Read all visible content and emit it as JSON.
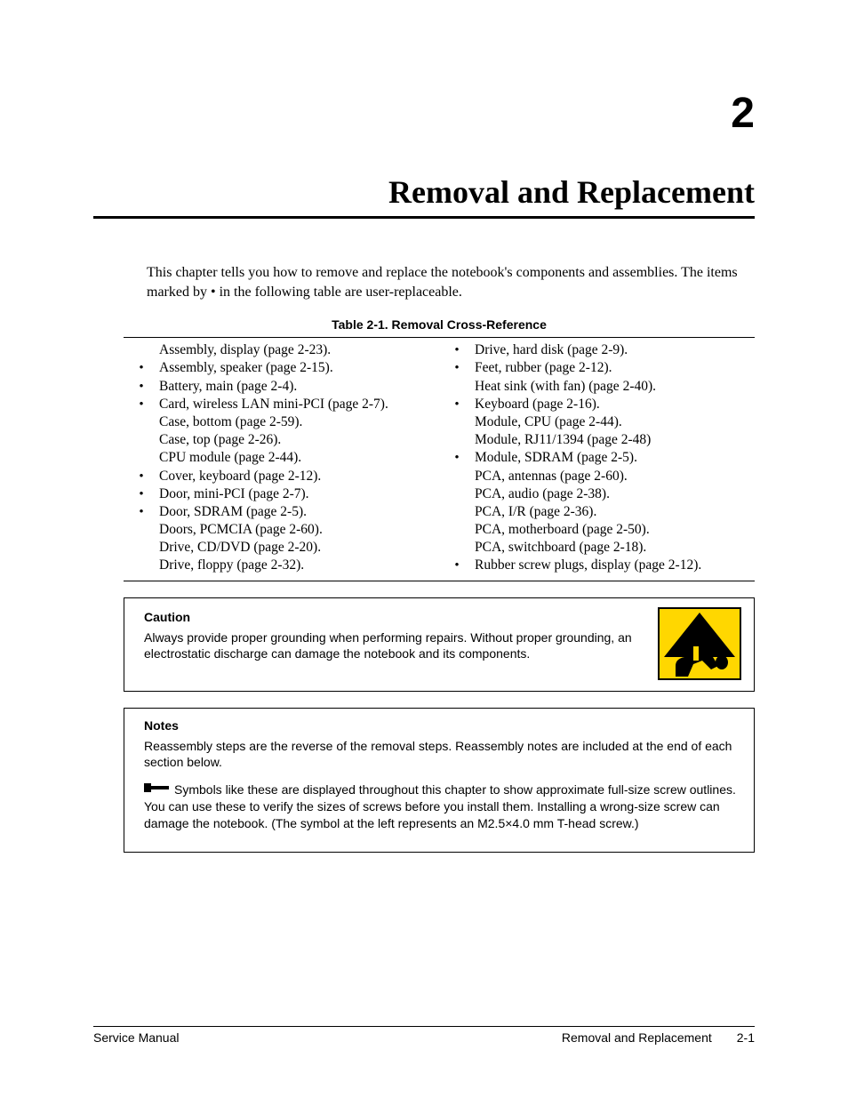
{
  "chapter": {
    "number": "2",
    "title": "Removal and Replacement"
  },
  "intro": "This chapter tells you how to remove and replace the notebook's components and assemblies. The items marked by • in the following table are user-replaceable.",
  "table": {
    "caption": "Table 2-1. Removal Cross-Reference",
    "left": [
      {
        "b": false,
        "t": "Assembly, display (page 2-23)."
      },
      {
        "b": true,
        "t": "Assembly, speaker (page 2-15)."
      },
      {
        "b": true,
        "t": "Battery, main (page 2-4)."
      },
      {
        "b": true,
        "t": "Card, wireless LAN mini-PCI (page 2-7)."
      },
      {
        "b": false,
        "t": "Case, bottom (page 2-59)."
      },
      {
        "b": false,
        "t": "Case, top (page 2-26)."
      },
      {
        "b": false,
        "t": "CPU module (page 2-44)."
      },
      {
        "b": true,
        "t": "Cover, keyboard (page 2-12)."
      },
      {
        "b": true,
        "t": "Door, mini-PCI (page 2-7)."
      },
      {
        "b": true,
        "t": "Door, SDRAM (page 2-5)."
      },
      {
        "b": false,
        "t": "Doors, PCMCIA (page 2-60)."
      },
      {
        "b": false,
        "t": "Drive, CD/DVD (page 2-20)."
      },
      {
        "b": false,
        "t": "Drive, floppy (page 2-32)."
      }
    ],
    "right": [
      {
        "b": true,
        "t": "Drive, hard disk (page 2-9)."
      },
      {
        "b": true,
        "t": "Feet, rubber (page 2-12)."
      },
      {
        "b": false,
        "t": "Heat sink (with fan) (page 2-40)."
      },
      {
        "b": true,
        "t": "Keyboard (page 2-16)."
      },
      {
        "b": false,
        "t": "Module, CPU (page 2-44)."
      },
      {
        "b": false,
        "t": "Module, RJ11/1394 (page 2-48)"
      },
      {
        "b": true,
        "t": "Module, SDRAM (page 2-5)."
      },
      {
        "b": false,
        "t": "PCA, antennas (page 2-60)."
      },
      {
        "b": false,
        "t": "PCA, audio (page 2-38)."
      },
      {
        "b": false,
        "t": "PCA, I/R (page 2-36)."
      },
      {
        "b": false,
        "t": "PCA, motherboard (page 2-50)."
      },
      {
        "b": false,
        "t": "PCA, switchboard (page 2-18)."
      },
      {
        "b": true,
        "t": "Rubber screw plugs, display (page 2-12)."
      }
    ]
  },
  "caution": {
    "heading": "Caution",
    "text": "Always provide proper grounding when performing repairs. Without proper grounding, an electrostatic discharge can damage the notebook and its components.",
    "icon": {
      "bg": "#ffd700",
      "border": "#000000",
      "triangle_fill": "#000000",
      "hand_fill": "#000000"
    }
  },
  "notes": {
    "heading": "Notes",
    "p1": "Reassembly steps are the reverse of the removal steps. Reassembly notes are included at the end of each section below.",
    "p2_lead": "Symbols like these are displayed throughout this chapter to show approximate full-size screw outlines. You can use these to verify the sizes of screws before you install them. Installing a wrong-size screw can damage the notebook. (The symbol at the left represents an M2.5×4.0 mm T-head screw.)",
    "screw_symbol": {
      "w": 28,
      "h": 10,
      "fill": "#000000"
    }
  },
  "footer": {
    "left": "Service Manual",
    "right_label": "Removal and Replacement",
    "page": "2-1"
  }
}
